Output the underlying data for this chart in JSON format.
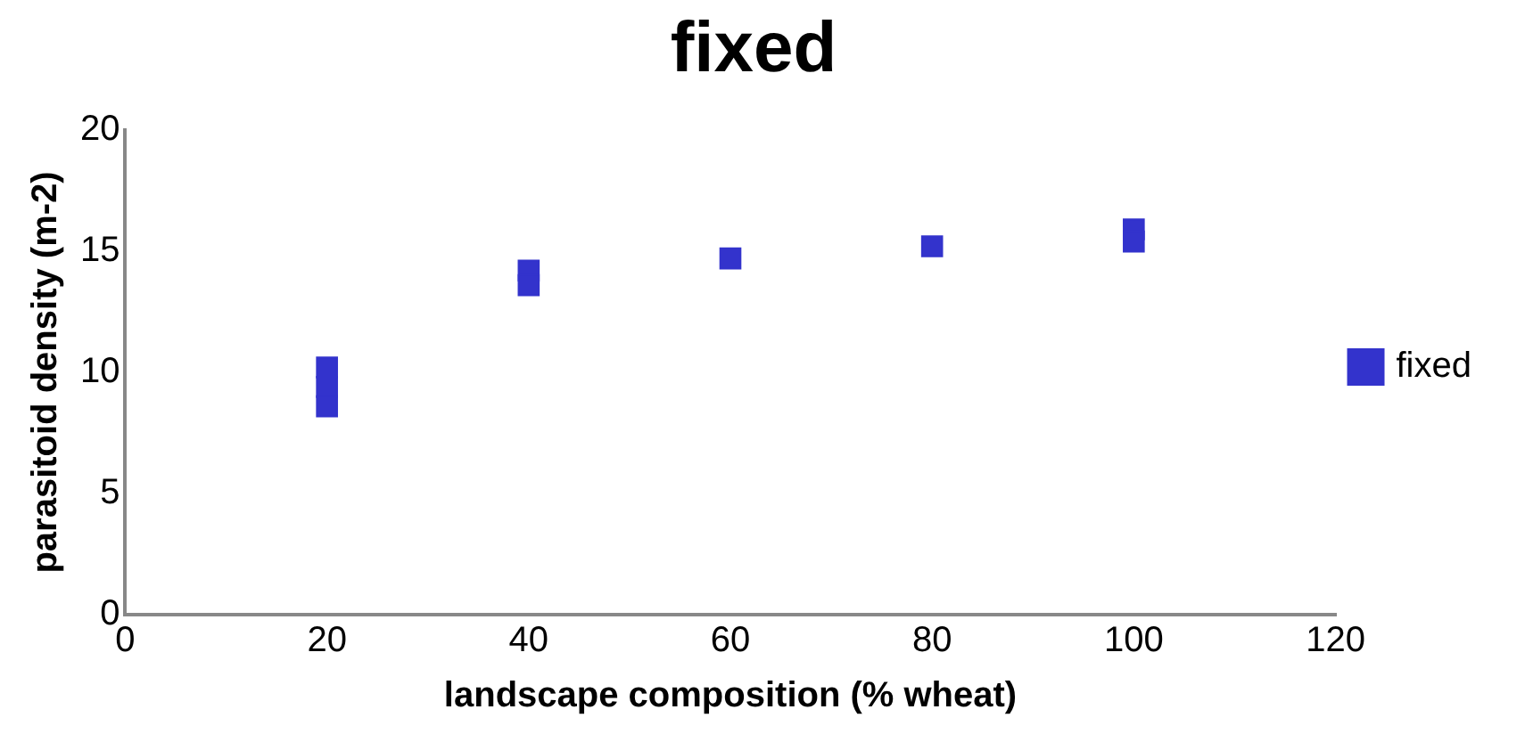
{
  "chart_data": {
    "type": "scatter",
    "title": "fixed",
    "xlabel": "landscape composition (% wheat)",
    "ylabel": "parasitoid density (m-2)",
    "series": [
      {
        "name": "fixed",
        "color": "#3333cc",
        "x": [
          20,
          20,
          20,
          40,
          40,
          60,
          80,
          100,
          100
        ],
        "values": [
          10.2,
          9.4,
          8.6,
          14.2,
          13.6,
          14.7,
          15.2,
          15.9,
          15.4
        ]
      }
    ],
    "xlim": [
      0,
      120
    ],
    "xticks": [
      0,
      20,
      40,
      60,
      80,
      100,
      120
    ],
    "ylim": [
      0,
      20
    ],
    "yticks": [
      0,
      5,
      10,
      15,
      20
    ],
    "grid": false,
    "legend": "right",
    "marker": "square"
  }
}
